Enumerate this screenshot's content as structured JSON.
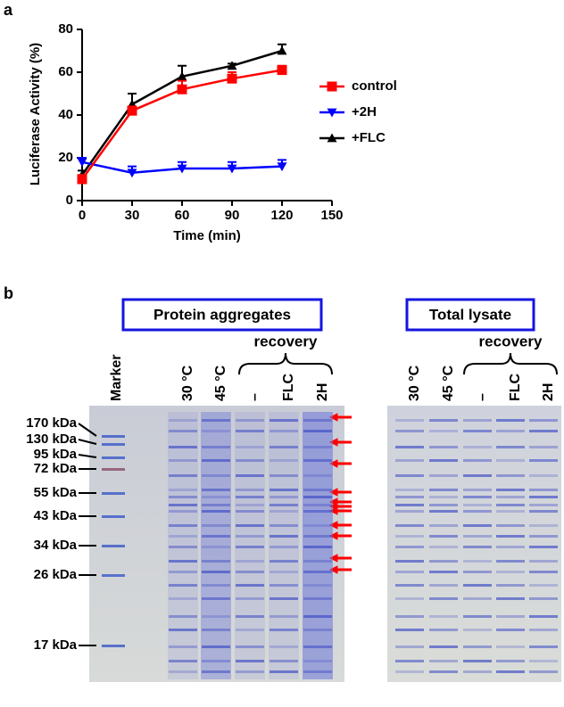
{
  "chart_data": {
    "type": "line",
    "label": "a",
    "xlabel": "Time (min)",
    "ylabel": "Luciferase Activity (%)",
    "x": [
      0,
      30,
      60,
      90,
      120
    ],
    "series": [
      {
        "name": "control",
        "color": "#ff0000",
        "marker": "square",
        "values": [
          10,
          42,
          52,
          57,
          61
        ],
        "errors": [
          2,
          2,
          4,
          3,
          2
        ]
      },
      {
        "name": "+2H",
        "color": "#0000ff",
        "marker": "triangle-down",
        "values": [
          18,
          13,
          15,
          15,
          16
        ],
        "errors": [
          2,
          3,
          3,
          3,
          3
        ]
      },
      {
        "name": "+FLC",
        "color": "#000000",
        "marker": "triangle-up",
        "values": [
          12,
          45,
          58,
          63,
          70
        ],
        "errors": [
          2,
          5,
          5,
          1,
          3
        ]
      }
    ],
    "xlim": [
      0,
      150
    ],
    "xticks": [
      0,
      30,
      60,
      90,
      120,
      150
    ],
    "ylim": [
      0,
      80
    ],
    "yticks": [
      0,
      20,
      40,
      60,
      80
    ],
    "legend": "right"
  },
  "gels": {
    "label": "b",
    "marker": "Marker",
    "marker_sizes": [
      "170 kDa",
      "130 kDa",
      "95 kDa",
      "72 kDa",
      "55 kDa",
      "43 kDa",
      "34 kDa",
      "26 kDa",
      "17 kDa"
    ],
    "panels": [
      {
        "title": "Protein aggregates",
        "lanes": [
          "30 °C",
          "45 °C",
          "–",
          "FLC",
          "2H"
        ],
        "group": "recovery"
      },
      {
        "title": "Total lysate",
        "lanes": [
          "30 °C",
          "45 °C",
          "–",
          "FLC",
          "2H"
        ],
        "group": "recovery"
      }
    ]
  }
}
